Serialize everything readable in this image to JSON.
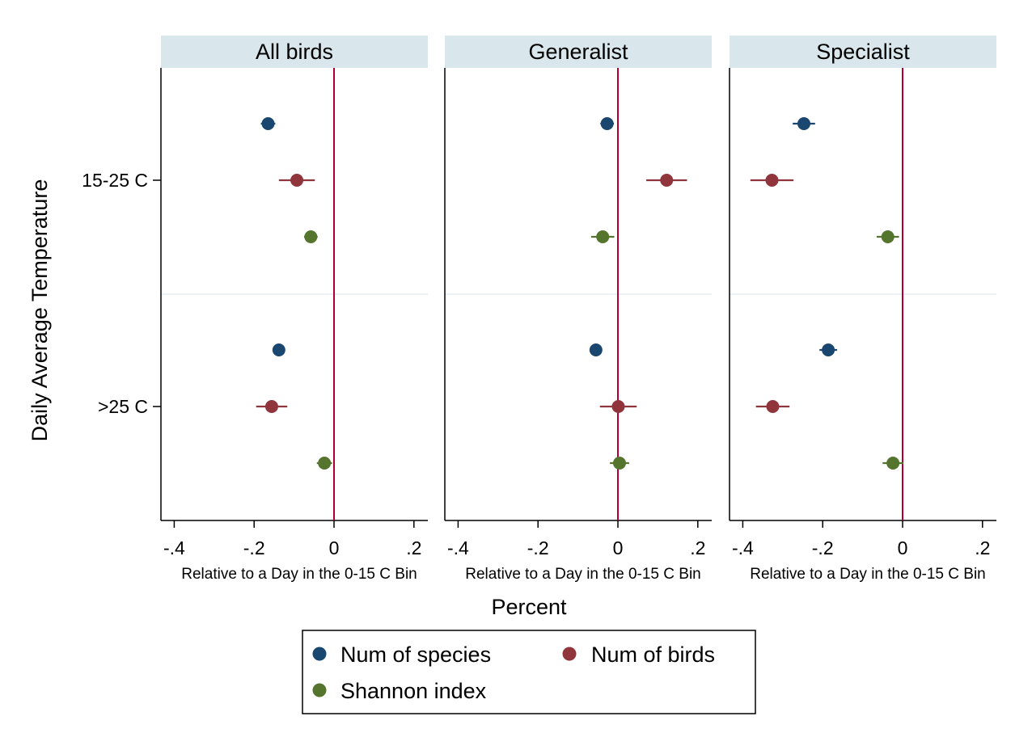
{
  "chart_data": {
    "type": "scatter",
    "subtype": "coefficient-plot",
    "y_title": "Daily Average Temperature",
    "x_title": "Percent",
    "x_subtitle": "Relative to a Day in the 0-15 C Bin",
    "xlim": [
      -0.43,
      0.23
    ],
    "x_ticks": [
      {
        "value": -0.4,
        "label": "-.4"
      },
      {
        "value": -0.2,
        "label": "-.2"
      },
      {
        "value": 0,
        "label": "0"
      },
      {
        "value": 0.2,
        "label": ".2"
      }
    ],
    "reference_line_x": 0,
    "grid": false,
    "categories": [
      "15-25 C",
      ">25 C"
    ],
    "series_meta": [
      {
        "key": "species",
        "name": "Num of species",
        "color": "#1a476f"
      },
      {
        "key": "birds",
        "name": "Num of birds",
        "color": "#90353b"
      },
      {
        "key": "shannon",
        "name": "Shannon index",
        "color": "#55752f"
      }
    ],
    "panels": [
      {
        "title": "All birds",
        "points": [
          {
            "category": "15-25 C",
            "series": "species",
            "estimate": -0.165,
            "ci": [
              -0.183,
              -0.147
            ]
          },
          {
            "category": "15-25 C",
            "series": "birds",
            "estimate": -0.093,
            "ci": [
              -0.138,
              -0.048
            ]
          },
          {
            "category": "15-25 C",
            "series": "shannon",
            "estimate": -0.058,
            "ci": [
              -0.075,
              -0.041
            ]
          },
          {
            "category": ">25 C",
            "series": "species",
            "estimate": -0.138,
            "ci": [
              -0.152,
              -0.124
            ]
          },
          {
            "category": ">25 C",
            "series": "birds",
            "estimate": -0.156,
            "ci": [
              -0.195,
              -0.117
            ]
          },
          {
            "category": ">25 C",
            "series": "shannon",
            "estimate": -0.024,
            "ci": [
              -0.043,
              -0.005
            ]
          }
        ]
      },
      {
        "title": "Generalist",
        "points": [
          {
            "category": "15-25 C",
            "series": "species",
            "estimate": -0.027,
            "ci": [
              -0.044,
              -0.01
            ]
          },
          {
            "category": "15-25 C",
            "series": "birds",
            "estimate": 0.122,
            "ci": [
              0.071,
              0.173
            ]
          },
          {
            "category": "15-25 C",
            "series": "shannon",
            "estimate": -0.038,
            "ci": [
              -0.067,
              -0.009
            ]
          },
          {
            "category": ">25 C",
            "series": "species",
            "estimate": -0.055,
            "ci": [
              -0.07,
              -0.04
            ]
          },
          {
            "category": ">25 C",
            "series": "birds",
            "estimate": 0.001,
            "ci": [
              -0.045,
              0.047
            ]
          },
          {
            "category": ">25 C",
            "series": "shannon",
            "estimate": 0.004,
            "ci": [
              -0.02,
              0.028
            ]
          }
        ]
      },
      {
        "title": "Specialist",
        "points": [
          {
            "category": "15-25 C",
            "series": "species",
            "estimate": -0.247,
            "ci": [
              -0.275,
              -0.219
            ]
          },
          {
            "category": "15-25 C",
            "series": "birds",
            "estimate": -0.327,
            "ci": [
              -0.381,
              -0.273
            ]
          },
          {
            "category": "15-25 C",
            "series": "shannon",
            "estimate": -0.037,
            "ci": [
              -0.065,
              -0.009
            ]
          },
          {
            "category": ">25 C",
            "series": "species",
            "estimate": -0.186,
            "ci": [
              -0.208,
              -0.164
            ]
          },
          {
            "category": ">25 C",
            "series": "birds",
            "estimate": -0.325,
            "ci": [
              -0.367,
              -0.283
            ]
          },
          {
            "category": ">25 C",
            "series": "shannon",
            "estimate": -0.024,
            "ci": [
              -0.05,
              0.002
            ]
          }
        ]
      }
    ],
    "legend": {
      "placement": "bottom",
      "entries": [
        "Num of species",
        "Num of birds",
        "Shannon index"
      ]
    },
    "colors": {
      "panel_header": "#d9e6eb",
      "reference_line": "#b00032",
      "separator": "#e4ecef",
      "axis": "#000000"
    }
  }
}
